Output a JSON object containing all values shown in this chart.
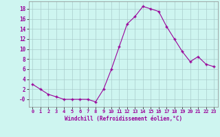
{
  "x": [
    0,
    1,
    2,
    3,
    4,
    5,
    6,
    7,
    8,
    9,
    10,
    11,
    12,
    13,
    14,
    15,
    16,
    17,
    18,
    19,
    20,
    21,
    22,
    23
  ],
  "y": [
    3,
    2,
    1,
    0.5,
    0,
    0,
    0,
    0,
    -0.5,
    2,
    6,
    10.5,
    15,
    16.5,
    18.5,
    18,
    17.5,
    14.5,
    12,
    9.5,
    7.5,
    8.5,
    7,
    6.5
  ],
  "line_color": "#990099",
  "marker_color": "#990099",
  "bg_color": "#cef5f0",
  "grid_color": "#aacccc",
  "xlabel": "Windchill (Refroidissement éolien,°C)",
  "xlabel_color": "#990099",
  "ytick_values": [
    0,
    2,
    4,
    6,
    8,
    10,
    12,
    14,
    16,
    18
  ],
  "ytick_labels": [
    "-0",
    "2",
    "4",
    "6",
    "8",
    "10",
    "12",
    "14",
    "16",
    "18"
  ],
  "xtick_labels": [
    "0",
    "1",
    "2",
    "3",
    "4",
    "5",
    "6",
    "7",
    "8",
    "9",
    "10",
    "11",
    "12",
    "13",
    "14",
    "15",
    "16",
    "17",
    "18",
    "19",
    "20",
    "21",
    "22",
    "23"
  ],
  "ylim": [
    -1.5,
    19.5
  ],
  "xlim": [
    -0.5,
    23.5
  ]
}
